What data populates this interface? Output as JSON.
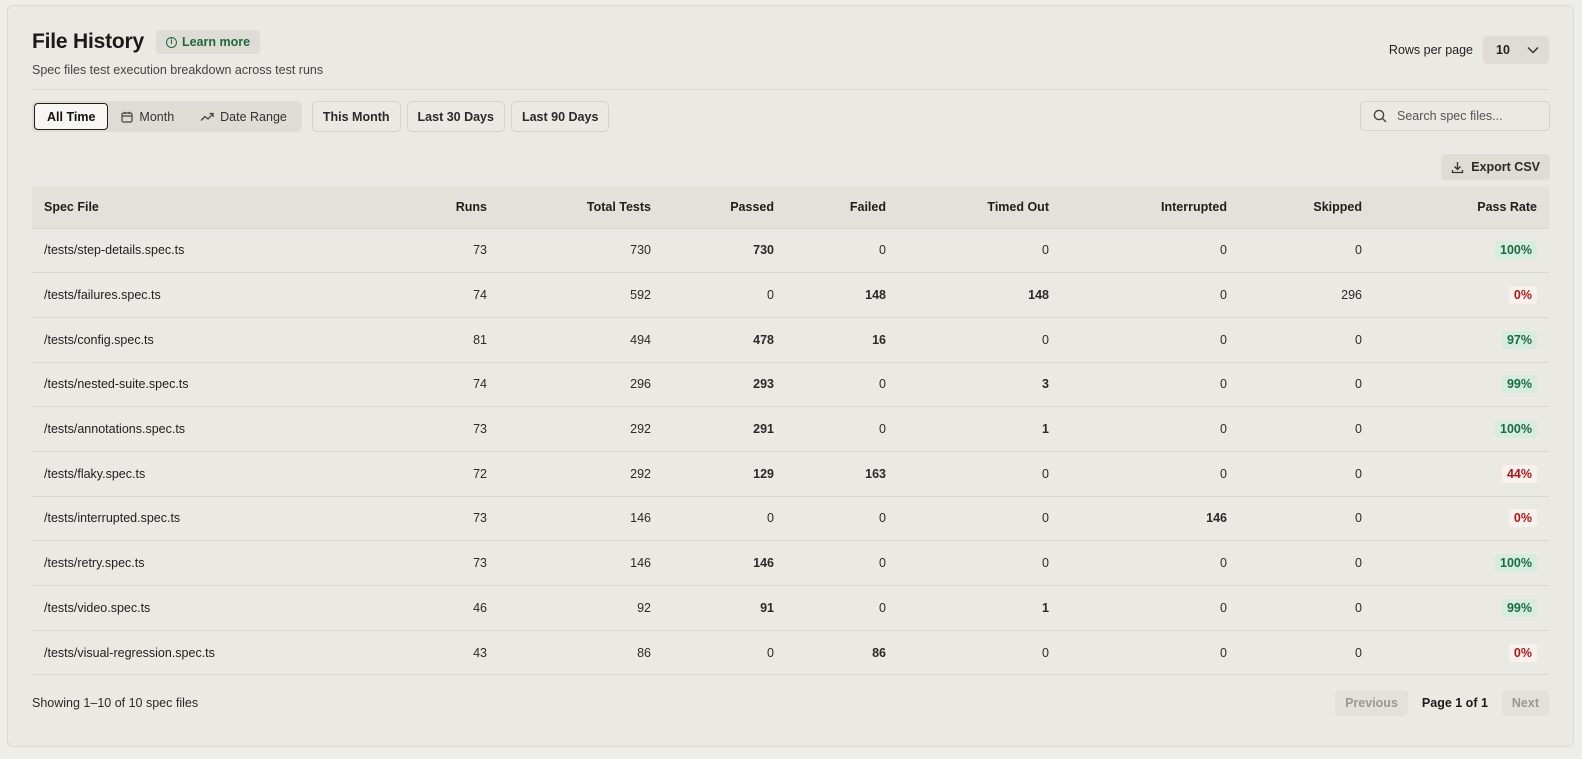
{
  "header": {
    "title": "File History",
    "learn_more": "Learn more",
    "subtitle": "Spec files test execution breakdown across test runs",
    "rows_per_page_label": "Rows per page",
    "rows_per_page_value": "10"
  },
  "filters": {
    "segments": [
      "All Time",
      "Month",
      "Date Range"
    ],
    "active_segment": "All Time",
    "chips": [
      "This Month",
      "Last 30 Days",
      "Last 90 Days"
    ],
    "search_placeholder": "Search spec files..."
  },
  "export_label": "Export CSV",
  "table": {
    "columns": [
      "Spec File",
      "Runs",
      "Total Tests",
      "Passed",
      "Failed",
      "Timed Out",
      "Interrupted",
      "Skipped",
      "Pass Rate"
    ],
    "rows": [
      {
        "file": "/tests/step-details.spec.ts",
        "runs": "73",
        "total": "730",
        "passed": "730",
        "failed": "0",
        "timed_out": "0",
        "interrupted": "0",
        "skipped": "0",
        "pass_rate": "100%"
      },
      {
        "file": "/tests/failures.spec.ts",
        "runs": "74",
        "total": "592",
        "passed": "0",
        "failed": "148",
        "timed_out": "148",
        "interrupted": "0",
        "skipped": "296",
        "pass_rate": "0%"
      },
      {
        "file": "/tests/config.spec.ts",
        "runs": "81",
        "total": "494",
        "passed": "478",
        "failed": "16",
        "timed_out": "0",
        "interrupted": "0",
        "skipped": "0",
        "pass_rate": "97%"
      },
      {
        "file": "/tests/nested-suite.spec.ts",
        "runs": "74",
        "total": "296",
        "passed": "293",
        "failed": "0",
        "timed_out": "3",
        "interrupted": "0",
        "skipped": "0",
        "pass_rate": "99%"
      },
      {
        "file": "/tests/annotations.spec.ts",
        "runs": "73",
        "total": "292",
        "passed": "291",
        "failed": "0",
        "timed_out": "1",
        "interrupted": "0",
        "skipped": "0",
        "pass_rate": "100%"
      },
      {
        "file": "/tests/flaky.spec.ts",
        "runs": "72",
        "total": "292",
        "passed": "129",
        "failed": "163",
        "timed_out": "0",
        "interrupted": "0",
        "skipped": "0",
        "pass_rate": "44%"
      },
      {
        "file": "/tests/interrupted.spec.ts",
        "runs": "73",
        "total": "146",
        "passed": "0",
        "failed": "0",
        "timed_out": "0",
        "interrupted": "146",
        "skipped": "0",
        "pass_rate": "0%"
      },
      {
        "file": "/tests/retry.spec.ts",
        "runs": "73",
        "total": "146",
        "passed": "146",
        "failed": "0",
        "timed_out": "0",
        "interrupted": "0",
        "skipped": "0",
        "pass_rate": "100%"
      },
      {
        "file": "/tests/video.spec.ts",
        "runs": "46",
        "total": "92",
        "passed": "91",
        "failed": "0",
        "timed_out": "1",
        "interrupted": "0",
        "skipped": "0",
        "pass_rate": "99%"
      },
      {
        "file": "/tests/visual-regression.spec.ts",
        "runs": "43",
        "total": "86",
        "passed": "0",
        "failed": "86",
        "timed_out": "0",
        "interrupted": "0",
        "skipped": "0",
        "pass_rate": "0%"
      }
    ]
  },
  "footer": {
    "showing": "Showing 1–10 of 10 spec files",
    "previous": "Previous",
    "page": "Page 1 of 1",
    "next": "Next"
  },
  "colors": {
    "positive": "#1d6a3f",
    "negative": "#b01818",
    "warning": "#8a6a10",
    "background": "#ebe9e3"
  },
  "icons": {
    "learn_more": "info-icon",
    "month": "calendar-icon",
    "date_range": "trend-icon",
    "search": "search-icon",
    "export": "download-icon",
    "rows_per_page": "chevron-down-icon"
  }
}
